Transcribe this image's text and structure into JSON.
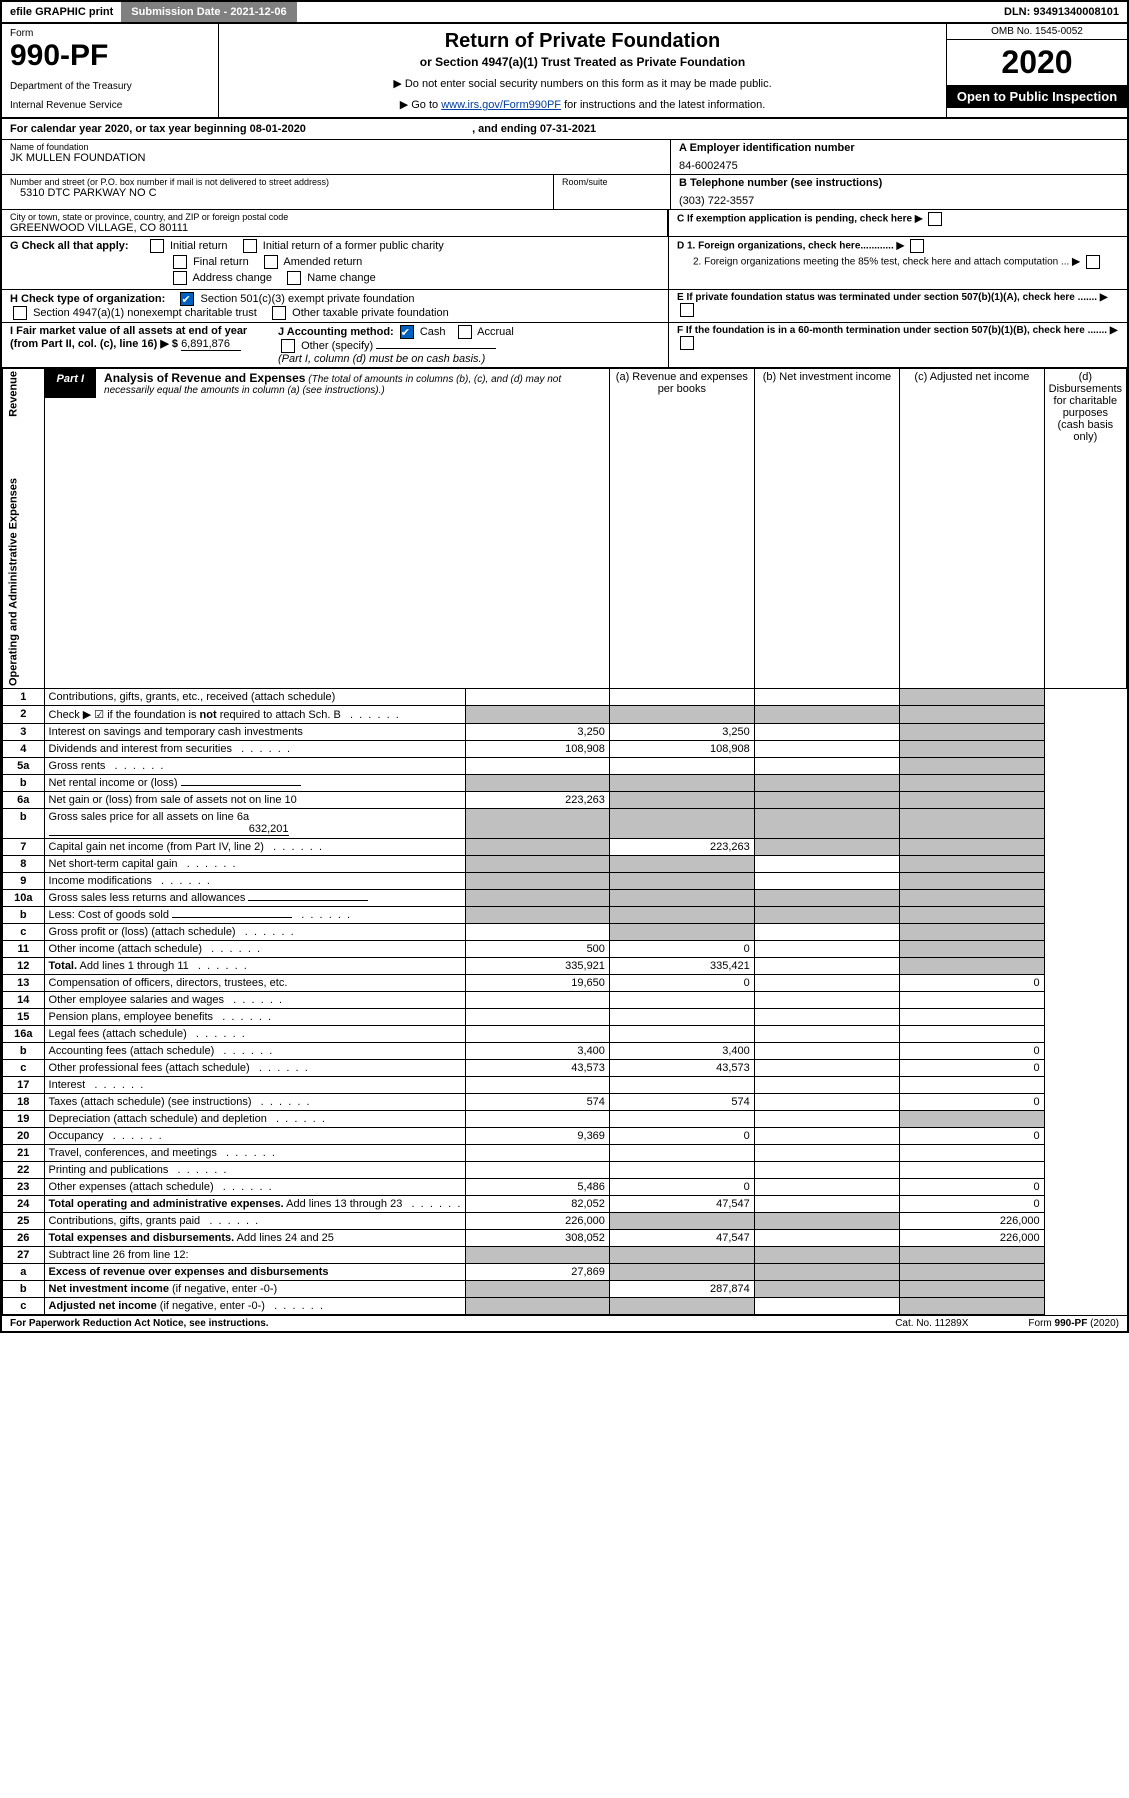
{
  "topbar": {
    "efile": "efile GRAPHIC print",
    "submission": "Submission Date - 2021-12-06",
    "dln": "DLN: 93491340008101"
  },
  "header": {
    "form_label": "Form",
    "form_number": "990-PF",
    "dept1": "Department of the Treasury",
    "dept2": "Internal Revenue Service",
    "title": "Return of Private Foundation",
    "subtitle": "or Section 4947(a)(1) Trust Treated as Private Foundation",
    "instr1": "▶ Do not enter social security numbers on this form as it may be made public.",
    "instr2": "▶ Go to www.irs.gov/Form990PF for instructions and the latest information.",
    "link_text": "www.irs.gov/Form990PF",
    "omb": "OMB No. 1545-0052",
    "year": "2020",
    "open": "Open to Public Inspection"
  },
  "calyear": {
    "text1": "For calendar year 2020, or tax year beginning ",
    "begin": "08-01-2020",
    "text2": ", and ending ",
    "end": "07-31-2021"
  },
  "entity": {
    "name_label": "Name of foundation",
    "name": "JK MULLEN FOUNDATION",
    "addr_label": "Number and street (or P.O. box number if mail is not delivered to street address)",
    "room_label": "Room/suite",
    "addr": "5310 DTC PARKWAY NO C",
    "city_label": "City or town, state or province, country, and ZIP or foreign postal code",
    "city": "GREENWOOD VILLAGE, CO  80111",
    "a_label": "A Employer identification number",
    "ein": "84-6002475",
    "b_label": "B Telephone number (see instructions)",
    "phone": "(303) 722-3557",
    "c_label": "C If exemption application is pending, check here",
    "d1": "D 1. Foreign organizations, check here............",
    "d2": "2. Foreign organizations meeting the 85% test, check here and attach computation ...",
    "e_label": "E  If private foundation status was terminated under section 507(b)(1)(A), check here .......",
    "f_label": "F  If the foundation is in a 60-month termination under section 507(b)(1)(B), check here .......",
    "g_label": "G Check all that apply:",
    "g_opts": [
      "Initial return",
      "Initial return of a former public charity",
      "Final return",
      "Amended return",
      "Address change",
      "Name change"
    ],
    "h_label": "H Check type of organization:",
    "h_opts": [
      "Section 501(c)(3) exempt private foundation",
      "Section 4947(a)(1) nonexempt charitable trust",
      "Other taxable private foundation"
    ],
    "i_label": "I Fair market value of all assets at end of year (from Part II, col. (c), line 16) ▶ $",
    "i_val": "6,891,876",
    "j_label": "J Accounting method:",
    "j_opts": [
      "Cash",
      "Accrual",
      "Other (specify)"
    ],
    "j_note": "(Part I, column (d) must be on cash basis.)"
  },
  "part1": {
    "tag": "Part I",
    "title": "Analysis of Revenue and Expenses",
    "note": "(The total of amounts in columns (b), (c), and (d) may not necessarily equal the amounts in column (a) (see instructions).)",
    "cols": {
      "a": "(a) Revenue and expenses per books",
      "b": "(b) Net investment income",
      "c": "(c) Adjusted net income",
      "d": "(d) Disbursements for charitable purposes (cash basis only)"
    },
    "side_rev": "Revenue",
    "side_exp": "Operating and Administrative Expenses"
  },
  "rows": [
    {
      "n": "1",
      "d": "Contributions, gifts, grants, etc., received (attach schedule)",
      "a": "",
      "b": "",
      "c": "",
      "dsh_a": false,
      "dsh_b": false,
      "dsh_c": false,
      "dsh_d": true
    },
    {
      "n": "2",
      "d": "Check ▶ ☑ if the foundation is <b>not</b> required to attach Sch. B",
      "dots": true,
      "dsh_a": true,
      "dsh_b": true,
      "dsh_c": true,
      "dsh_d": true
    },
    {
      "n": "3",
      "d": "Interest on savings and temporary cash investments",
      "a": "3,250",
      "b": "3,250",
      "dsh_d": true
    },
    {
      "n": "4",
      "d": "Dividends and interest from securities",
      "dots": true,
      "a": "108,908",
      "b": "108,908",
      "dsh_d": true
    },
    {
      "n": "5a",
      "d": "Gross rents",
      "dots": true,
      "dsh_d": true
    },
    {
      "n": "b",
      "d": "Net rental income or (loss)",
      "uline": true,
      "dsh_a": true,
      "dsh_b": true,
      "dsh_c": true,
      "dsh_d": true
    },
    {
      "n": "6a",
      "d": "Net gain or (loss) from sale of assets not on line 10",
      "a": "223,263",
      "dsh_b": true,
      "dsh_c": true,
      "dsh_d": true
    },
    {
      "n": "b",
      "d": "Gross sales price for all assets on line 6a",
      "inline": "632,201",
      "dsh_a": true,
      "dsh_b": true,
      "dsh_c": true,
      "dsh_d": true
    },
    {
      "n": "7",
      "d": "Capital gain net income (from Part IV, line 2)",
      "dots": true,
      "dsh_a": true,
      "b": "223,263",
      "dsh_c": true,
      "dsh_d": true
    },
    {
      "n": "8",
      "d": "Net short-term capital gain",
      "dots": true,
      "dsh_a": true,
      "dsh_b": true,
      "dsh_d": true
    },
    {
      "n": "9",
      "d": "Income modifications",
      "dots": true,
      "dsh_a": true,
      "dsh_b": true,
      "dsh_d": true
    },
    {
      "n": "10a",
      "d": "Gross sales less returns and allowances",
      "uline": true,
      "dsh_a": true,
      "dsh_b": true,
      "dsh_c": true,
      "dsh_d": true
    },
    {
      "n": "b",
      "d": "Less: Cost of goods sold",
      "dots": true,
      "uline": true,
      "dsh_a": true,
      "dsh_b": true,
      "dsh_c": true,
      "dsh_d": true
    },
    {
      "n": "c",
      "d": "Gross profit or (loss) (attach schedule)",
      "dots": true,
      "dsh_b": true,
      "dsh_d": true
    },
    {
      "n": "11",
      "d": "Other income (attach schedule)",
      "dots": true,
      "a": "500",
      "b": "0",
      "dsh_d": true
    },
    {
      "n": "12",
      "d": "<b>Total.</b> Add lines 1 through 11",
      "dots": true,
      "a": "335,921",
      "b": "335,421",
      "dsh_d": true
    },
    {
      "n": "13",
      "d": "Compensation of officers, directors, trustees, etc.",
      "a": "19,650",
      "b": "0",
      "dd": "0"
    },
    {
      "n": "14",
      "d": "Other employee salaries and wages",
      "dots": true
    },
    {
      "n": "15",
      "d": "Pension plans, employee benefits",
      "dots": true
    },
    {
      "n": "16a",
      "d": "Legal fees (attach schedule)",
      "dots": true
    },
    {
      "n": "b",
      "d": "Accounting fees (attach schedule)",
      "dots": true,
      "a": "3,400",
      "b": "3,400",
      "dd": "0"
    },
    {
      "n": "c",
      "d": "Other professional fees (attach schedule)",
      "dots": true,
      "a": "43,573",
      "b": "43,573",
      "dd": "0"
    },
    {
      "n": "17",
      "d": "Interest",
      "dots": true
    },
    {
      "n": "18",
      "d": "Taxes (attach schedule) (see instructions)",
      "dots": true,
      "a": "574",
      "b": "574",
      "dd": "0"
    },
    {
      "n": "19",
      "d": "Depreciation (attach schedule) and depletion",
      "dots": true,
      "dsh_d": true
    },
    {
      "n": "20",
      "d": "Occupancy",
      "dots": true,
      "a": "9,369",
      "b": "0",
      "dd": "0"
    },
    {
      "n": "21",
      "d": "Travel, conferences, and meetings",
      "dots": true
    },
    {
      "n": "22",
      "d": "Printing and publications",
      "dots": true
    },
    {
      "n": "23",
      "d": "Other expenses (attach schedule)",
      "dots": true,
      "a": "5,486",
      "b": "0",
      "dd": "0"
    },
    {
      "n": "24",
      "d": "<b>Total operating and administrative expenses.</b> Add lines 13 through 23",
      "dots": true,
      "a": "82,052",
      "b": "47,547",
      "dd": "0"
    },
    {
      "n": "25",
      "d": "Contributions, gifts, grants paid",
      "dots": true,
      "a": "226,000",
      "dsh_b": true,
      "dsh_c": true,
      "dd": "226,000"
    },
    {
      "n": "26",
      "d": "<b>Total expenses and disbursements.</b> Add lines 24 and 25",
      "a": "308,052",
      "b": "47,547",
      "dd": "226,000"
    },
    {
      "n": "27",
      "d": "Subtract line 26 from line 12:",
      "dsh_a": true,
      "dsh_b": true,
      "dsh_c": true,
      "dsh_d": true
    },
    {
      "n": "a",
      "d": "<b>Excess of revenue over expenses and disbursements</b>",
      "a": "27,869",
      "dsh_b": true,
      "dsh_c": true,
      "dsh_d": true
    },
    {
      "n": "b",
      "d": "<b>Net investment income</b> (if negative, enter -0-)",
      "dsh_a": true,
      "b": "287,874",
      "dsh_c": true,
      "dsh_d": true
    },
    {
      "n": "c",
      "d": "<b>Adjusted net income</b> (if negative, enter -0-)",
      "dots": true,
      "dsh_a": true,
      "dsh_b": true,
      "dsh_d": true
    }
  ],
  "footer": {
    "left": "For Paperwork Reduction Act Notice, see instructions.",
    "mid": "Cat. No. 11289X",
    "right": "Form 990-PF (2020)"
  }
}
